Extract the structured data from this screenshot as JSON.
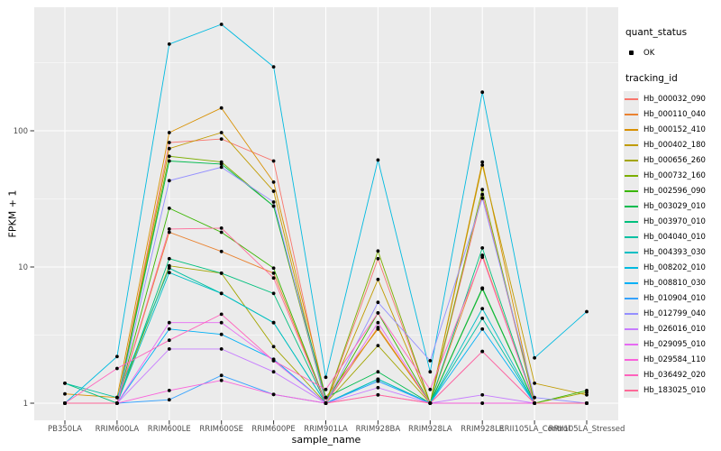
{
  "figure": {
    "xlabel": "sample_name",
    "ylabel": "FPKM + 1"
  },
  "legend": {
    "quant_status_title": "quant_status",
    "quant_status_items": [
      {
        "label": "OK",
        "symbol": "black-point"
      }
    ],
    "tracking_id_title": "tracking_id"
  },
  "chart_data": {
    "type": "line",
    "title": "",
    "xlabel": "sample_name",
    "ylabel": "FPKM + 1",
    "y_scale": "log10",
    "grid": true,
    "legend_position": "right",
    "style": {
      "panel_bg": "#ebebeb",
      "grid_color": "#ffffff",
      "point_color": "#000000",
      "axis_text_color": "#4d4d4d",
      "tick_color": "#333333"
    },
    "ylim": [
      0.75,
      900
    ],
    "y_ticks": [
      1,
      10,
      100
    ],
    "y_tick_labels": [
      "1",
      "10",
      "100"
    ],
    "y_minor_ticks": [
      3.162,
      31.62,
      316.2
    ],
    "categories": [
      "PB350LA",
      "RRIM600LA",
      "RRIM600LE",
      "RRIM600SE",
      "RRIM600PE",
      "RRIM901LA",
      "RRIM928BA",
      "RRIM928LA",
      "RRIM928LE",
      "RRII105LA_Control",
      "RRII105LA_Stressed"
    ],
    "series": [
      {
        "name": "Hb_000032_090",
        "color": "#F8766D",
        "values": [
          1,
          1,
          82,
          87,
          60,
          1,
          11.5,
          1,
          34,
          1,
          1
        ]
      },
      {
        "name": "Hb_000110_040",
        "color": "#EA8331",
        "values": [
          1,
          1,
          18,
          13,
          9,
          1,
          3.6,
          1,
          12.2,
          1,
          1
        ]
      },
      {
        "name": "Hb_000152_410",
        "color": "#D89000",
        "values": [
          1.17,
          1.1,
          97,
          147,
          42,
          1.1,
          3.5,
          1,
          59,
          1,
          1
        ]
      },
      {
        "name": "Hb_000402_180",
        "color": "#C09B00",
        "values": [
          1,
          1,
          74,
          97,
          36,
          1,
          8.1,
          1,
          56,
          1.4,
          1.15
        ]
      },
      {
        "name": "Hb_000656_260",
        "color": "#A3A500",
        "values": [
          1,
          1,
          10.2,
          9,
          2.6,
          1,
          2.65,
          1,
          7,
          1,
          1.2
        ]
      },
      {
        "name": "Hb_000732_160",
        "color": "#7CAE00",
        "values": [
          1,
          1,
          65,
          59,
          28,
          1,
          13.1,
          1,
          37,
          1,
          1
        ]
      },
      {
        "name": "Hb_002596_090",
        "color": "#39B600",
        "values": [
          1,
          1,
          27,
          18,
          9.8,
          1,
          4.6,
          1,
          6.9,
          1,
          1.24
        ]
      },
      {
        "name": "Hb_003029_010",
        "color": "#00BB4E",
        "values": [
          1,
          1,
          60,
          57,
          28,
          1.1,
          1.7,
          1,
          7,
          1,
          1
        ]
      },
      {
        "name": "Hb_003970_010",
        "color": "#00BF7D",
        "values": [
          1.4,
          1,
          11.5,
          9,
          6.4,
          1,
          1.5,
          1,
          13.8,
          1,
          1
        ]
      },
      {
        "name": "Hb_004040_010",
        "color": "#00C1A3",
        "values": [
          1.4,
          1.1,
          9.8,
          6.4,
          3.9,
          1,
          1.5,
          1,
          4.2,
          1,
          1
        ]
      },
      {
        "name": "Hb_004393_030",
        "color": "#00BFC4",
        "values": [
          1,
          1,
          9.1,
          6.4,
          3.9,
          1,
          1.5,
          1,
          4.95,
          1,
          1
        ]
      },
      {
        "name": "Hb_008202_010",
        "color": "#00BAE0",
        "values": [
          1,
          2.2,
          433,
          605,
          295,
          1.55,
          61,
          1.7,
          192,
          2.15,
          4.7
        ]
      },
      {
        "name": "Hb_008810_030",
        "color": "#00B0F6",
        "values": [
          1,
          1,
          3.5,
          3.2,
          2.1,
          1,
          1.45,
          1,
          3.5,
          1,
          1
        ]
      },
      {
        "name": "Hb_010904_010",
        "color": "#35A2FF",
        "values": [
          1,
          1,
          1.06,
          1.6,
          1.16,
          1,
          1.45,
          1,
          1,
          1,
          1
        ]
      },
      {
        "name": "Hb_012799_040",
        "color": "#9590FF",
        "values": [
          1,
          1,
          43,
          54,
          30,
          1,
          5.5,
          2.05,
          32,
          1.1,
          1
        ]
      },
      {
        "name": "Hb_026016_010",
        "color": "#C77CFF",
        "values": [
          1,
          1,
          2.5,
          2.5,
          1.7,
          1,
          1.3,
          1,
          1.15,
          1,
          1
        ]
      },
      {
        "name": "Hb_029095_010",
        "color": "#E76BF3",
        "values": [
          1,
          1,
          3.9,
          3.9,
          2.05,
          1,
          3.9,
          1,
          2.4,
          1,
          1
        ]
      },
      {
        "name": "Hb_029584_110",
        "color": "#FA62DB",
        "values": [
          1,
          1,
          1.24,
          1.47,
          1.16,
          1,
          1.15,
          1,
          1,
          1,
          1
        ]
      },
      {
        "name": "Hb_036492_020",
        "color": "#FF62BC",
        "values": [
          1,
          1.8,
          2.9,
          4.5,
          2.05,
          1.26,
          4.6,
          1.26,
          11.8,
          1,
          1
        ]
      },
      {
        "name": "Hb_183025_010",
        "color": "#FF6A98",
        "values": [
          1,
          1,
          19,
          19.3,
          8.3,
          1,
          1.15,
          1,
          2.4,
          1,
          1
        ]
      }
    ]
  }
}
